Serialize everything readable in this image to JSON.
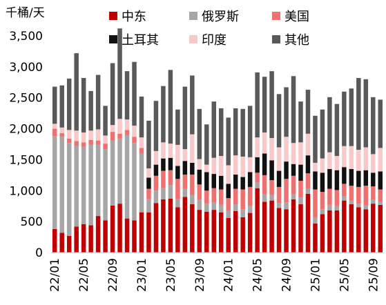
{
  "chart_data": {
    "type": "bar",
    "stacked": true,
    "ylabel": "千桶/天",
    "ylim": [
      0,
      3500
    ],
    "yticks": [
      "0",
      "500",
      "1,000",
      "1,500",
      "2,000",
      "2,500",
      "3,000",
      "3,500"
    ],
    "categories": [
      "22/01",
      "22/02",
      "22/03",
      "22/04",
      "22/05",
      "22/06",
      "22/07",
      "22/08",
      "22/09",
      "22/10",
      "22/11",
      "22/12",
      "23/01",
      "23/02",
      "23/03",
      "23/04",
      "23/05",
      "23/06",
      "23/07",
      "23/08",
      "23/09",
      "23/10",
      "23/11",
      "23/12",
      "24/01",
      "24/02",
      "24/03",
      "24/04",
      "24/05",
      "24/06",
      "24/07",
      "24/08",
      "24/09",
      "24/10",
      "24/11",
      "24/12",
      "25/01",
      "25/02",
      "25/03",
      "25/04",
      "25/05",
      "25/06",
      "25/07",
      "25/08",
      "25/09",
      "25/10"
    ],
    "xtick_labels": [
      "22/01",
      "22/05",
      "22/09",
      "23/01",
      "23/05",
      "23/09",
      "24/01",
      "24/05",
      "24/09",
      "25/01",
      "25/05",
      "25/09"
    ],
    "legend_position": "top",
    "series": [
      {
        "name": "中东",
        "color": "#C00000",
        "values": [
          380,
          320,
          270,
          420,
          460,
          440,
          590,
          520,
          760,
          790,
          550,
          520,
          650,
          650,
          800,
          860,
          870,
          730,
          900,
          780,
          690,
          660,
          690,
          650,
          560,
          670,
          570,
          640,
          1040,
          820,
          840,
          720,
          700,
          860,
          780,
          950,
          470,
          620,
          680,
          680,
          840,
          780,
          730,
          700,
          790,
          770
        ]
      },
      {
        "name": "俄罗斯",
        "color": "#A6A6A6",
        "values": [
          1500,
          1550,
          1500,
          1300,
          1250,
          1300,
          1150,
          1150,
          1050,
          1050,
          1350,
          1250,
          950,
          210,
          200,
          180,
          220,
          130,
          130,
          150,
          160,
          130,
          120,
          120,
          120,
          110,
          130,
          110,
          90,
          120,
          90,
          80,
          110,
          80,
          110,
          80,
          90,
          80,
          90,
          70,
          70,
          60,
          60,
          60,
          60,
          50
        ]
      },
      {
        "name": "美国",
        "color": "#F07070",
        "values": [
          120,
          60,
          70,
          80,
          70,
          80,
          70,
          90,
          140,
          80,
          80,
          100,
          90,
          170,
          240,
          280,
          240,
          330,
          230,
          330,
          250,
          210,
          230,
          250,
          200,
          250,
          320,
          310,
          160,
          310,
          240,
          260,
          380,
          300,
          270,
          250,
          460,
          280,
          260,
          260,
          200,
          240,
          270,
          320,
          220,
          200
        ]
      },
      {
        "name": "土耳其",
        "color": "#111111",
        "values": [
          0,
          0,
          0,
          0,
          0,
          0,
          0,
          0,
          0,
          0,
          0,
          0,
          0,
          180,
          180,
          200,
          200,
          210,
          220,
          190,
          240,
          300,
          230,
          220,
          230,
          230,
          200,
          240,
          250,
          350,
          320,
          260,
          280,
          190,
          260,
          290,
          290,
          310,
          320,
          320,
          270,
          270,
          260,
          250,
          220,
          290
        ]
      },
      {
        "name": "印度",
        "color": "#F9C8C8",
        "values": [
          80,
          90,
          140,
          170,
          160,
          150,
          180,
          130,
          110,
          240,
          170,
          180,
          170,
          150,
          220,
          260,
          230,
          340,
          190,
          460,
          170,
          120,
          260,
          320,
          300,
          310,
          330,
          240,
          320,
          340,
          360,
          380,
          400,
          340,
          360,
          350,
          140,
          230,
          270,
          230,
          340,
          370,
          340,
          370,
          300,
          380
        ]
      },
      {
        "name": "其他",
        "color": "#595959",
        "values": [
          600,
          680,
          830,
          1250,
          880,
          640,
          880,
          480,
          1000,
          1460,
          780,
          1030,
          660,
          770,
          810,
          910,
          1190,
          570,
          1010,
          950,
          810,
          650,
          910,
          770,
          770,
          760,
          770,
          830,
          1050,
          900,
          1080,
          860,
          800,
          1080,
          660,
          710,
          760,
          790,
          890,
          840,
          880,
          930,
          1160,
          1100,
          920,
          780
        ]
      }
    ]
  }
}
